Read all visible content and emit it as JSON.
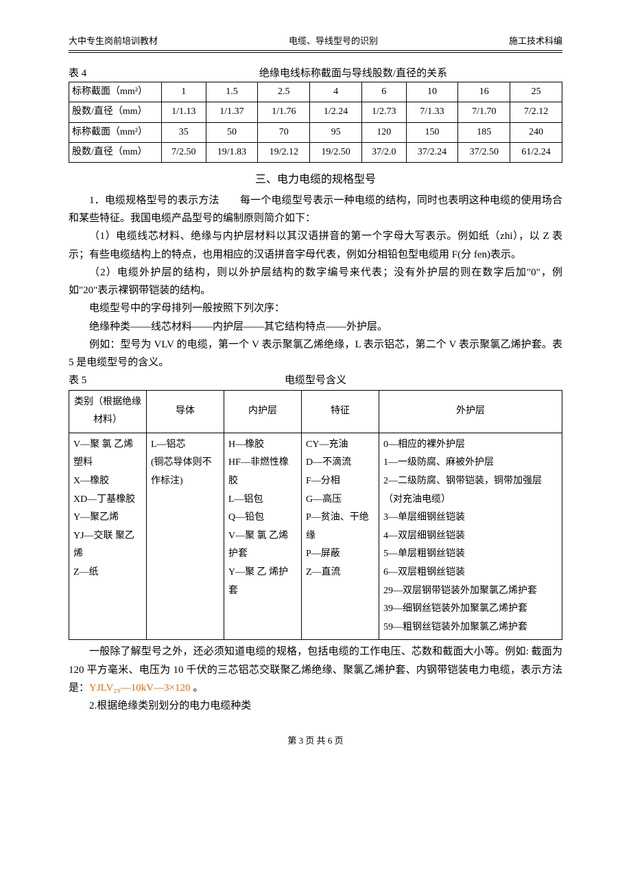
{
  "header": {
    "left": "大中专生岗前培训教材",
    "center": "电缆、导线型号的识别",
    "right": "施工技术科编"
  },
  "table4": {
    "label": "表 4",
    "title": "绝缘电线标称截面与导线股数/直径的关系",
    "row1_label": "标称截面（mm²）",
    "row2_label": "股数/直径（mm）",
    "row3_label": "标称截面（mm²）",
    "row4_label": "股数/直径（mm）",
    "row1": [
      "1",
      "1.5",
      "2.5",
      "4",
      "6",
      "10",
      "16",
      "25"
    ],
    "row2": [
      "1/1.13",
      "1/1.37",
      "1/1.76",
      "1/2.24",
      "1/2.73",
      "7/1.33",
      "7/1.70",
      "7/2.12"
    ],
    "row3": [
      "35",
      "50",
      "70",
      "95",
      "120",
      "150",
      "185",
      "240"
    ],
    "row4": [
      "7/2.50",
      "19/1.83",
      "19/2.12",
      "19/2.50",
      "37/2.0",
      "37/2.24",
      "37/2.50",
      "61/2.24"
    ]
  },
  "section3_title": "三、电力电缆的规格型号",
  "para1": "1．电缆规格型号的表示方法　　每一个电缆型号表示一种电缆的结构，同时也表明这种电缆的使用场合和某些特征。我国电缆产品型号的编制原则简介如下：",
  "para2": "（1）电缆线芯材料、绝缘与内护层材料以其汉语拼音的第一个字母大写表示。例如纸（zhi），以 Z 表示；有些电缆结构上的特点，也用相应的汉语拼音字母代表，例如分相铅包型电缆用 F(分 fen)表示。",
  "para3": "（2）电缆外护层的结构，则以外护层结构的数字编号来代表；没有外护层的则在数字后加\"0\"，例如\"20\"表示裸钢带铠装的结构。",
  "para4": "电缆型号中的字母排列一般按照下列次序：",
  "para5": "绝缘种类——线芯材料——内护层——其它结构特点——外护层。",
  "para6": "例如：型号为 VLV 的电缆，第一个 V 表示聚氯乙烯绝缘，L 表示铝芯，第二个 V 表示聚氯乙烯护套。表 5 是电缆型号的含义。",
  "table5": {
    "label": "表 5",
    "title": "电缆型号含义",
    "headers": {
      "c1": "类别（根据绝缘材料）",
      "c2": "导体",
      "c3": "内护层",
      "c4": "特征",
      "c5": "外护层"
    },
    "c1_lines": [
      "V—聚 氯 乙烯塑料",
      "X—橡胶",
      "XD—丁基橡胶",
      "Y—聚乙烯",
      "YJ—交联 聚乙烯",
      "Z—纸"
    ],
    "c2_lines": [
      "L—铝芯",
      "(铜芯导体则不作标注)"
    ],
    "c3_lines": [
      "H—橡胶",
      "HF—非燃性橡胶",
      "L—铝包",
      "Q—铅包",
      "V—聚 氯 乙烯护套",
      "Y—聚 乙 烯护套"
    ],
    "c4_lines": [
      "CY—充油",
      "D—不滴流",
      "F—分相",
      "G—高压",
      "P—贫油、干绝缘",
      "P—屏蔽",
      "Z—直流"
    ],
    "c5_lines": [
      "0—相应的裸外护层",
      "1—一级防腐、麻被外护层",
      "2—二级防腐、钢带铠装，铜带加强层（对充油电缆）",
      "3—单层细钢丝铠装",
      "4—双层细钢丝铠装",
      "5—单层粗钢丝铠装",
      "6—双层粗钢丝铠装",
      "29—双层钢带铠装外加聚氯乙烯护套",
      "39—细钢丝铠装外加聚氯乙烯护套",
      "59—粗钢丝铠装外加聚氯乙烯护套"
    ]
  },
  "para7_a": "一般除了解型号之外，还必须知道电缆的规格，包括电缆的工作电压、芯数和截面大小等。例如: 截面为 120 平方毫米、电压为 10 千伏的三芯铝芯交联聚乙烯绝缘、聚氯乙烯护套、内钢带铠装电力电缆，表示方法是：",
  "para7_orange": "YJLV₂₉—10kV—3×120",
  "para7_end": " 。",
  "para8": "2.根据绝缘类别划分的电力电缆种类",
  "footer": "第 3 页 共 6 页"
}
